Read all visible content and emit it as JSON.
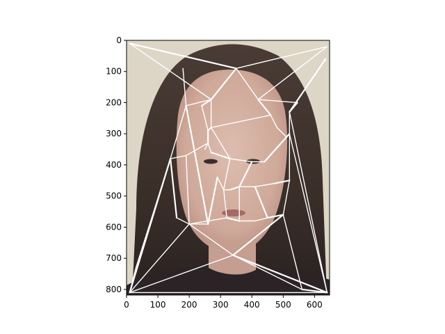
{
  "chart_data": {
    "type": "image",
    "title": "",
    "xlabel": "",
    "ylabel": "",
    "xlim": [
      0,
      648
    ],
    "ylim": [
      818,
      0
    ],
    "x_ticks": [
      0,
      100,
      200,
      300,
      400,
      500,
      600
    ],
    "y_ticks": [
      0,
      100,
      200,
      300,
      400,
      500,
      600,
      700,
      800
    ],
    "grid": false,
    "colors": {
      "background": "#ddd6c6",
      "hair": "#3c302b",
      "skin": "#d4b0a3",
      "mesh_lines": "#ffffff"
    },
    "mesh_points": [
      [
        10,
        10
      ],
      [
        350,
        90
      ],
      [
        640,
        20
      ],
      [
        635,
        60
      ],
      [
        180,
        90
      ],
      [
        270,
        190
      ],
      [
        420,
        190
      ],
      [
        190,
        210
      ],
      [
        240,
        210
      ],
      [
        270,
        280
      ],
      [
        260,
        290
      ],
      [
        460,
        240
      ],
      [
        520,
        230
      ],
      [
        545,
        200
      ],
      [
        480,
        280
      ],
      [
        520,
        300
      ],
      [
        510,
        310
      ],
      [
        260,
        330
      ],
      [
        250,
        350
      ],
      [
        270,
        360
      ],
      [
        330,
        380
      ],
      [
        400,
        390
      ],
      [
        440,
        390
      ],
      [
        140,
        380
      ],
      [
        190,
        370
      ],
      [
        160,
        570
      ],
      [
        200,
        590
      ],
      [
        260,
        590
      ],
      [
        290,
        440
      ],
      [
        310,
        480
      ],
      [
        330,
        480
      ],
      [
        360,
        470
      ],
      [
        410,
        470
      ],
      [
        470,
        460
      ],
      [
        520,
        450
      ],
      [
        320,
        570
      ],
      [
        360,
        580
      ],
      [
        410,
        580
      ],
      [
        450,
        570
      ],
      [
        500,
        560
      ],
      [
        340,
        690
      ],
      [
        560,
        800
      ],
      [
        640,
        810
      ],
      [
        10,
        810
      ],
      [
        30,
        730
      ]
    ],
    "mesh_edges": [
      [
        0,
        1
      ],
      [
        1,
        2
      ],
      [
        0,
        5
      ],
      [
        1,
        5
      ],
      [
        1,
        6
      ],
      [
        2,
        6
      ],
      [
        3,
        12
      ],
      [
        4,
        7
      ],
      [
        5,
        7
      ],
      [
        5,
        8
      ],
      [
        5,
        9
      ],
      [
        6,
        13
      ],
      [
        6,
        11
      ],
      [
        7,
        23
      ],
      [
        8,
        10
      ],
      [
        9,
        10
      ],
      [
        9,
        11
      ],
      [
        11,
        14
      ],
      [
        12,
        13
      ],
      [
        12,
        15
      ],
      [
        14,
        16
      ],
      [
        10,
        17
      ],
      [
        17,
        18
      ],
      [
        17,
        19
      ],
      [
        19,
        20
      ],
      [
        20,
        21
      ],
      [
        21,
        22
      ],
      [
        22,
        15
      ],
      [
        23,
        24
      ],
      [
        24,
        17
      ],
      [
        23,
        25
      ],
      [
        25,
        26
      ],
      [
        26,
        27
      ],
      [
        27,
        28
      ],
      [
        28,
        29
      ],
      [
        29,
        30
      ],
      [
        30,
        31
      ],
      [
        31,
        32
      ],
      [
        32,
        33
      ],
      [
        33,
        34
      ],
      [
        34,
        15
      ],
      [
        26,
        35
      ],
      [
        35,
        36
      ],
      [
        36,
        37
      ],
      [
        37,
        38
      ],
      [
        38,
        39
      ],
      [
        39,
        34
      ],
      [
        26,
        40
      ],
      [
        40,
        39
      ],
      [
        40,
        41
      ],
      [
        39,
        41
      ],
      [
        41,
        42
      ],
      [
        15,
        42
      ],
      [
        12,
        42
      ],
      [
        40,
        42
      ],
      [
        43,
        40
      ],
      [
        43,
        26
      ],
      [
        43,
        23
      ],
      [
        43,
        44
      ],
      [
        43,
        42
      ],
      [
        7,
        27
      ],
      [
        9,
        20
      ],
      [
        20,
        29
      ],
      [
        21,
        31
      ],
      [
        29,
        35
      ],
      [
        31,
        36
      ],
      [
        32,
        38
      ],
      [
        24,
        26
      ],
      [
        44,
        23
      ]
    ]
  }
}
